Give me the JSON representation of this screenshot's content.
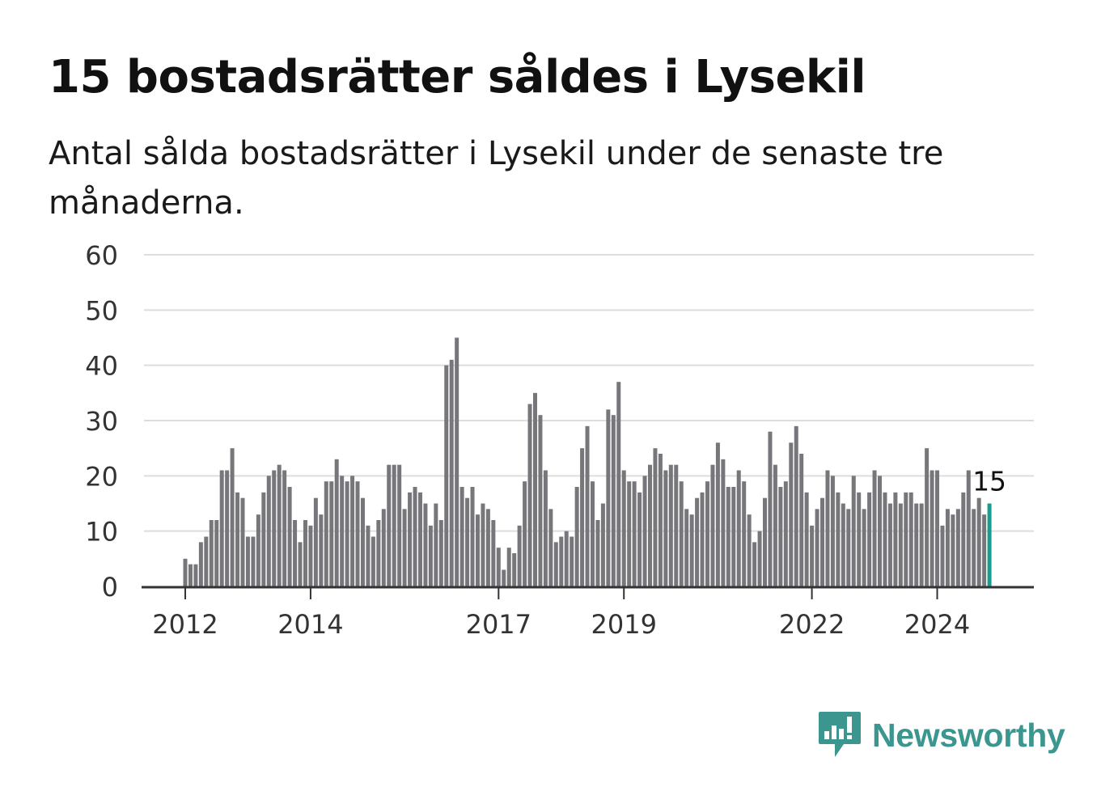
{
  "title": "15 bostadsrätter såldes i Lysekil",
  "subtitle": "Antal sålda bostadsrätter i Lysekil under de senaste tre månaderna.",
  "brand": {
    "name": "Newsworthy",
    "color": "#3a968e",
    "icon": "newsworthy-logo-icon"
  },
  "colors": {
    "bar": "#77767b",
    "highlight": "#1a9b8f",
    "grid": "#dddddd",
    "axis": "#333333"
  },
  "chart_data": {
    "type": "bar",
    "ylim": [
      0,
      60
    ],
    "y_ticks": [
      0,
      10,
      20,
      30,
      40,
      50,
      60
    ],
    "x_ticks": [
      {
        "label": "2012",
        "index": 0
      },
      {
        "label": "2014",
        "index": 24
      },
      {
        "label": "2017",
        "index": 60
      },
      {
        "label": "2019",
        "index": 84
      },
      {
        "label": "2022",
        "index": 120
      },
      {
        "label": "2024",
        "index": 144
      }
    ],
    "values": [
      5,
      4,
      4,
      8,
      9,
      12,
      12,
      21,
      21,
      25,
      17,
      16,
      9,
      9,
      13,
      17,
      20,
      21,
      22,
      21,
      18,
      12,
      8,
      12,
      11,
      16,
      13,
      19,
      19,
      23,
      20,
      19,
      20,
      19,
      16,
      11,
      9,
      12,
      14,
      22,
      22,
      22,
      14,
      17,
      18,
      17,
      15,
      11,
      15,
      12,
      40,
      41,
      45,
      18,
      16,
      18,
      13,
      15,
      14,
      12,
      7,
      3,
      7,
      6,
      11,
      19,
      33,
      35,
      31,
      21,
      14,
      8,
      9,
      10,
      9,
      18,
      25,
      29,
      19,
      12,
      15,
      32,
      31,
      37,
      21,
      19,
      19,
      17,
      20,
      22,
      25,
      24,
      21,
      22,
      22,
      19,
      14,
      13,
      16,
      17,
      19,
      22,
      26,
      23,
      18,
      18,
      21,
      19,
      13,
      8,
      10,
      16,
      28,
      22,
      18,
      19,
      26,
      29,
      24,
      17,
      11,
      14,
      16,
      21,
      20,
      17,
      15,
      14,
      20,
      17,
      14,
      17,
      21,
      20,
      17,
      15,
      17,
      15,
      17,
      17,
      15,
      15,
      25,
      21,
      21,
      11,
      14,
      13,
      14,
      17,
      21,
      14,
      16,
      13,
      15
    ],
    "highlight_index": 154,
    "highlight_label": "15"
  }
}
